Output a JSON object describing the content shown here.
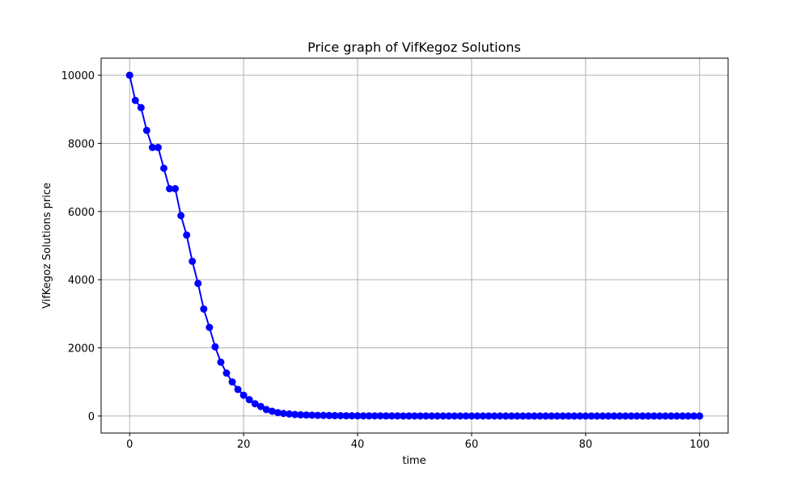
{
  "chart_data": {
    "type": "line",
    "title": "Price graph of VifKegoz Solutions",
    "xlabel": "time",
    "ylabel": "VifKegoz Solutions price",
    "xlim": [
      -5,
      105
    ],
    "ylim": [
      -500,
      10500
    ],
    "xticks": [
      0,
      20,
      40,
      60,
      80,
      100
    ],
    "yticks": [
      0,
      2000,
      4000,
      6000,
      8000,
      10000
    ],
    "grid": true,
    "series": [
      {
        "color": "#0000ff",
        "marker": "circle",
        "x": [
          0,
          1,
          2,
          3,
          4,
          5,
          6,
          7,
          8,
          9,
          10,
          11,
          12,
          13,
          14,
          15,
          16,
          17,
          18,
          19,
          20,
          21,
          22,
          23,
          24,
          25,
          26,
          27,
          28,
          29,
          30,
          31,
          32,
          33,
          34,
          35,
          36,
          37,
          38,
          39,
          40,
          41,
          42,
          43,
          44,
          45,
          46,
          47,
          48,
          49,
          50,
          51,
          52,
          53,
          54,
          55,
          56,
          57,
          58,
          59,
          60,
          61,
          62,
          63,
          64,
          65,
          66,
          67,
          68,
          69,
          70,
          71,
          72,
          73,
          74,
          75,
          76,
          77,
          78,
          79,
          80,
          81,
          82,
          83,
          84,
          85,
          86,
          87,
          88,
          89,
          90,
          91,
          92,
          93,
          94,
          95,
          96,
          97,
          98,
          99,
          100
        ],
        "y": [
          10000,
          9260,
          9050,
          8380,
          7880,
          7880,
          7270,
          6670,
          6670,
          5880,
          5310,
          4540,
          3890,
          3140,
          2600,
          2030,
          1580,
          1260,
          1000,
          780,
          610,
          480,
          360,
          280,
          190,
          140,
          100,
          75,
          60,
          45,
          35,
          30,
          25,
          20,
          18,
          15,
          12,
          10,
          8,
          7,
          6,
          5,
          5,
          4,
          4,
          3,
          3,
          3,
          2,
          2,
          2,
          2,
          1,
          1,
          1,
          1,
          1,
          1,
          1,
          1,
          1,
          1,
          1,
          1,
          1,
          1,
          0,
          0,
          0,
          0,
          0,
          0,
          0,
          0,
          0,
          0,
          0,
          0,
          0,
          0,
          0,
          0,
          0,
          0,
          0,
          0,
          0,
          0,
          0,
          0,
          0,
          0,
          0,
          0,
          0,
          0,
          0,
          0,
          0,
          0,
          0
        ]
      }
    ]
  }
}
